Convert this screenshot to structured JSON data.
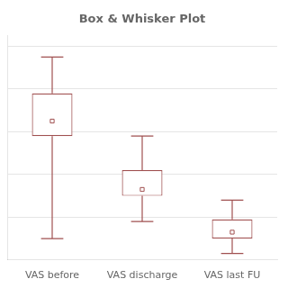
{
  "chart_data": {
    "type": "box",
    "title": "Box & Whisker Plot",
    "categories": [
      "VAS before",
      "VAS discharge",
      "VAS last FU"
    ],
    "whisker_low": [
      1.0,
      1.8,
      0.3
    ],
    "q1": [
      5.8,
      3.0,
      1.0
    ],
    "mean": [
      6.5,
      3.3,
      1.3
    ],
    "q3": [
      7.8,
      4.2,
      1.9
    ],
    "whisker_high": [
      9.5,
      5.8,
      2.8
    ],
    "color": "#a05050",
    "marker": "square",
    "ylim": [
      0,
      10.5
    ],
    "yticks": [
      2,
      4,
      6,
      8,
      10
    ],
    "grid": true,
    "tick_labels": "x"
  }
}
